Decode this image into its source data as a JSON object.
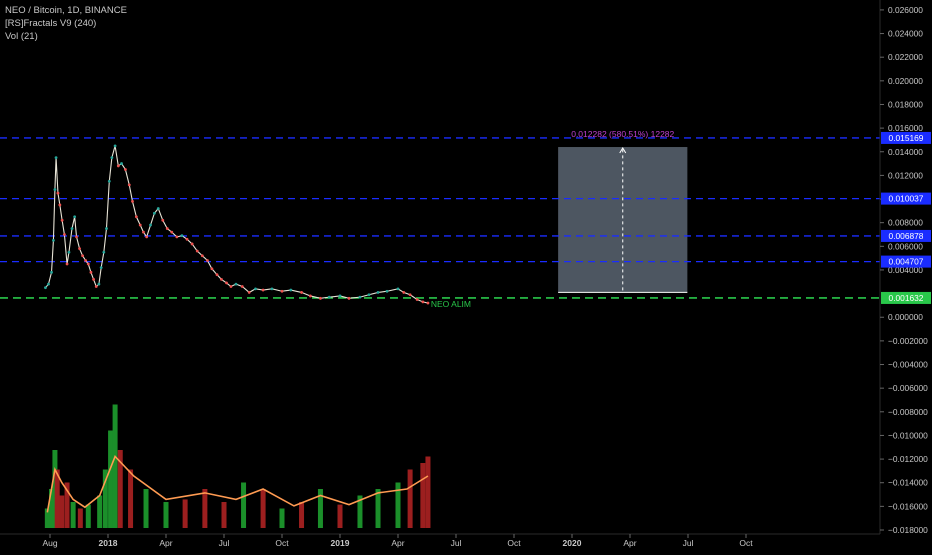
{
  "legend": {
    "symbol_line": "NEO / Bitcoin, 1D, BINANCE",
    "indicator_line": "[RS]Fractals V9 (240)",
    "volume_line": "Vol (21)"
  },
  "colors": {
    "background": "#000000",
    "up": "#26a69a",
    "down": "#ef5350",
    "volume_up": "#1b8f2a",
    "volume_down": "#9c1f1f",
    "volume_ma": "#ff9b52",
    "level_line": "#1a2cff",
    "support_line": "#29c74a",
    "measure_box": "#5a6572",
    "measure_text": "#c040d0",
    "axis_text": "#c8c8c8"
  },
  "chart_data": {
    "type": "candlestick",
    "title": "NEO / Bitcoin, 1D, BINANCE",
    "y_axis": {
      "ticks": [
        0.026,
        0.024,
        0.022,
        0.02,
        0.018,
        0.016,
        0.014,
        0.012,
        0.01,
        0.008,
        0.006,
        0.004,
        0.0,
        -0.002,
        -0.004,
        -0.006,
        -0.008,
        -0.01,
        -0.012,
        -0.014,
        -0.016,
        -0.018
      ],
      "tick_labels": [
        "0.026000",
        "0.024000",
        "0.022000",
        "0.020000",
        "0.018000",
        "0.016000",
        "0.014000",
        "0.012000",
        "0.010000",
        "0.008000",
        "0.006000",
        "0.004000",
        "0.000000",
        "−0.002000",
        "−0.004000",
        "−0.006000",
        "−0.008000",
        "−0.010000",
        "−0.012000",
        "−0.014000",
        "−0.016000",
        "−0.018000"
      ],
      "range": [
        -0.018,
        0.0265
      ]
    },
    "x_axis": {
      "labels": [
        "Aug",
        "2018",
        "Apr",
        "Jul",
        "Oct",
        "2019",
        "Apr",
        "Jul",
        "Oct",
        "2020",
        "Apr",
        "Jul",
        "Oct"
      ],
      "bold": [
        "2018",
        "2019",
        "2020"
      ],
      "label_dates": [
        "2017-08-01",
        "2018-01-01",
        "2018-04-01",
        "2018-07-01",
        "2018-10-01",
        "2019-01-01",
        "2019-04-01",
        "2019-07-01",
        "2019-10-01",
        "2020-01-01",
        "2020-04-01",
        "2020-07-01",
        "2020-10-01"
      ]
    },
    "price_series": [
      [
        "2017-07-20",
        0.0025
      ],
      [
        "2017-07-28",
        0.0028
      ],
      [
        "2017-08-05",
        0.0038
      ],
      [
        "2017-08-10",
        0.0065
      ],
      [
        "2017-08-14",
        0.0108
      ],
      [
        "2017-08-17",
        0.0135
      ],
      [
        "2017-08-22",
        0.0105
      ],
      [
        "2017-08-27",
        0.0095
      ],
      [
        "2017-09-02",
        0.0082
      ],
      [
        "2017-09-08",
        0.007
      ],
      [
        "2017-09-15",
        0.0045
      ],
      [
        "2017-09-20",
        0.0055
      ],
      [
        "2017-09-28",
        0.0075
      ],
      [
        "2017-10-05",
        0.0085
      ],
      [
        "2017-10-10",
        0.0068
      ],
      [
        "2017-10-18",
        0.0058
      ],
      [
        "2017-10-26",
        0.0052
      ],
      [
        "2017-11-03",
        0.0048
      ],
      [
        "2017-11-10",
        0.0045
      ],
      [
        "2017-11-17",
        0.0038
      ],
      [
        "2017-11-24",
        0.0032
      ],
      [
        "2017-12-01",
        0.0026
      ],
      [
        "2017-12-08",
        0.0028
      ],
      [
        "2017-12-14",
        0.0042
      ],
      [
        "2017-12-21",
        0.0055
      ],
      [
        "2017-12-28",
        0.0075
      ],
      [
        "2018-01-03",
        0.0115
      ],
      [
        "2018-01-07",
        0.0135
      ],
      [
        "2018-01-12",
        0.0145
      ],
      [
        "2018-01-17",
        0.0128
      ],
      [
        "2018-01-22",
        0.013
      ],
      [
        "2018-01-28",
        0.0125
      ],
      [
        "2018-02-03",
        0.0112
      ],
      [
        "2018-02-08",
        0.0098
      ],
      [
        "2018-02-14",
        0.0085
      ],
      [
        "2018-02-20",
        0.0078
      ],
      [
        "2018-02-25",
        0.0072
      ],
      [
        "2018-03-02",
        0.0068
      ],
      [
        "2018-03-08",
        0.0078
      ],
      [
        "2018-03-14",
        0.0088
      ],
      [
        "2018-03-20",
        0.0092
      ],
      [
        "2018-03-27",
        0.0082
      ],
      [
        "2018-04-03",
        0.0075
      ],
      [
        "2018-04-10",
        0.0072
      ],
      [
        "2018-04-18",
        0.0068
      ],
      [
        "2018-04-26",
        0.0069
      ],
      [
        "2018-05-04",
        0.0066
      ],
      [
        "2018-05-12",
        0.0062
      ],
      [
        "2018-05-20",
        0.0056
      ],
      [
        "2018-05-28",
        0.0052
      ],
      [
        "2018-06-05",
        0.0048
      ],
      [
        "2018-06-12",
        0.0041
      ],
      [
        "2018-06-20",
        0.0036
      ],
      [
        "2018-06-27",
        0.0032
      ],
      [
        "2018-07-05",
        0.0029
      ],
      [
        "2018-07-12",
        0.0026
      ],
      [
        "2018-07-20",
        0.0028
      ],
      [
        "2018-07-30",
        0.0026
      ],
      [
        "2018-08-10",
        0.0021
      ],
      [
        "2018-08-20",
        0.0024
      ],
      [
        "2018-09-01",
        0.0023
      ],
      [
        "2018-09-15",
        0.0024
      ],
      [
        "2018-10-01",
        0.0022
      ],
      [
        "2018-10-15",
        0.0023
      ],
      [
        "2018-11-01",
        0.0021
      ],
      [
        "2018-11-15",
        0.0018
      ],
      [
        "2018-12-01",
        0.0016
      ],
      [
        "2018-12-15",
        0.0017
      ],
      [
        "2019-01-01",
        0.0018
      ],
      [
        "2019-01-15",
        0.0016
      ],
      [
        "2019-02-01",
        0.0017
      ],
      [
        "2019-02-15",
        0.0019
      ],
      [
        "2019-03-01",
        0.0021
      ],
      [
        "2019-03-15",
        0.0022
      ],
      [
        "2019-04-01",
        0.0024
      ],
      [
        "2019-04-10",
        0.0021
      ],
      [
        "2019-04-20",
        0.0019
      ],
      [
        "2019-05-01",
        0.0015
      ],
      [
        "2019-05-10",
        0.0013
      ],
      [
        "2019-05-18",
        0.0012
      ]
    ],
    "volume_series": [
      [
        "2017-07-25",
        0.15,
        "u"
      ],
      [
        "2017-08-05",
        0.3,
        "u"
      ],
      [
        "2017-08-14",
        0.6,
        "u"
      ],
      [
        "2017-08-20",
        0.45,
        "d"
      ],
      [
        "2017-09-01",
        0.25,
        "d"
      ],
      [
        "2017-09-15",
        0.35,
        "d"
      ],
      [
        "2017-10-01",
        0.2,
        "u"
      ],
      [
        "2017-10-20",
        0.15,
        "d"
      ],
      [
        "2017-11-10",
        0.18,
        "u"
      ],
      [
        "2017-12-10",
        0.25,
        "u"
      ],
      [
        "2017-12-25",
        0.45,
        "u"
      ],
      [
        "2018-01-05",
        0.75,
        "u"
      ],
      [
        "2018-01-12",
        0.95,
        "u"
      ],
      [
        "2018-01-20",
        0.6,
        "d"
      ],
      [
        "2018-02-05",
        0.45,
        "d"
      ],
      [
        "2018-03-01",
        0.3,
        "u"
      ],
      [
        "2018-04-01",
        0.2,
        "u"
      ],
      [
        "2018-05-01",
        0.22,
        "d"
      ],
      [
        "2018-06-01",
        0.3,
        "d"
      ],
      [
        "2018-07-01",
        0.2,
        "d"
      ],
      [
        "2018-08-01",
        0.35,
        "u"
      ],
      [
        "2018-09-01",
        0.3,
        "d"
      ],
      [
        "2018-10-01",
        0.15,
        "u"
      ],
      [
        "2018-11-01",
        0.2,
        "d"
      ],
      [
        "2018-12-01",
        0.3,
        "u"
      ],
      [
        "2019-01-01",
        0.18,
        "d"
      ],
      [
        "2019-02-01",
        0.25,
        "u"
      ],
      [
        "2019-03-01",
        0.3,
        "u"
      ],
      [
        "2019-04-01",
        0.35,
        "u"
      ],
      [
        "2019-04-20",
        0.45,
        "d"
      ],
      [
        "2019-05-10",
        0.5,
        "d"
      ],
      [
        "2019-05-18",
        0.55,
        "d"
      ]
    ],
    "volume_ma_series": [
      [
        "2017-07-25",
        0.12
      ],
      [
        "2017-08-14",
        0.45
      ],
      [
        "2017-09-01",
        0.35
      ],
      [
        "2017-10-01",
        0.22
      ],
      [
        "2017-11-01",
        0.16
      ],
      [
        "2017-12-10",
        0.25
      ],
      [
        "2018-01-12",
        0.55
      ],
      [
        "2018-02-10",
        0.4
      ],
      [
        "2018-04-01",
        0.22
      ],
      [
        "2018-06-01",
        0.27
      ],
      [
        "2018-07-20",
        0.22
      ],
      [
        "2018-09-01",
        0.3
      ],
      [
        "2018-10-20",
        0.17
      ],
      [
        "2018-12-01",
        0.25
      ],
      [
        "2019-01-15",
        0.18
      ],
      [
        "2019-03-01",
        0.27
      ],
      [
        "2019-04-15",
        0.3
      ],
      [
        "2019-05-18",
        0.4
      ]
    ],
    "horizontal_levels": [
      {
        "value": 0.015169,
        "label": "0.015169"
      },
      {
        "value": 0.010037,
        "label": "0.010037"
      },
      {
        "value": 0.006878,
        "label": "0.006878"
      },
      {
        "value": 0.004707,
        "label": "0.004707"
      }
    ],
    "support_level": {
      "value": 0.001632,
      "label": "0.001632",
      "annotation": "NEO ALIM"
    },
    "measure_tool": {
      "from_date": "2019-12-10",
      "to_date": "2020-06-30",
      "low": 0.0021,
      "high": 0.0144,
      "label": "0.012282 (580.51%) 12282"
    }
  }
}
